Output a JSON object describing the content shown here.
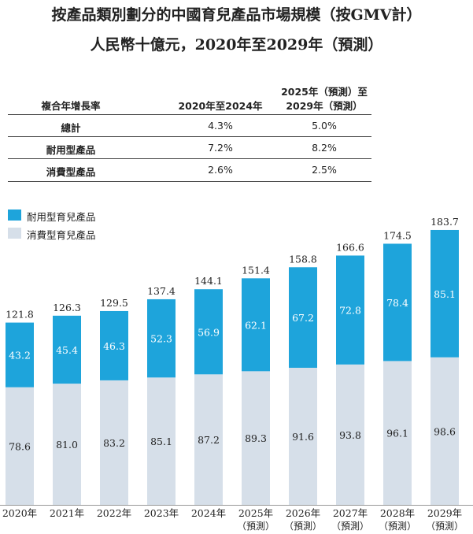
{
  "title_line1": "按產品類別劃分的中國育兒產品市場規模（按GMV計）",
  "title_line2": "人民幣十億元，2020年至2029年（預測）",
  "cagr_table": {
    "col_label": "複合年增長率",
    "col_hist": "2020年至2024年",
    "col_fore_line1": "2025年（預測）至",
    "col_fore_line2": "2029年（預測）",
    "rows": [
      {
        "label": "總計",
        "hist": "4.3%",
        "fore": "5.0%"
      },
      {
        "label": "耐用型產品",
        "hist": "7.2%",
        "fore": "8.2%"
      },
      {
        "label": "消費型產品",
        "hist": "2.6%",
        "fore": "2.5%"
      }
    ]
  },
  "colors": {
    "durable": "#1ea4db",
    "consumable": "#d6dfe9",
    "text": "#222222"
  },
  "chart_data": {
    "type": "bar",
    "stacked": true,
    "categories": [
      "2020年",
      "2021年",
      "2022年",
      "2023年",
      "2024年",
      "2025年",
      "2026年",
      "2027年",
      "2028年",
      "2029年"
    ],
    "category_sublabels": [
      "",
      "",
      "",
      "",
      "",
      "（預測）",
      "（預測）",
      "（預測）",
      "（預測）",
      "（預測）"
    ],
    "series": [
      {
        "name": "消費型育兒產品",
        "values": [
          78.6,
          81.0,
          83.2,
          85.1,
          87.2,
          89.3,
          91.6,
          93.8,
          96.1,
          98.6
        ]
      },
      {
        "name": "耐用型育兒產品",
        "values": [
          43.2,
          45.4,
          46.3,
          52.3,
          56.9,
          62.1,
          67.2,
          72.8,
          78.4,
          85.1
        ]
      }
    ],
    "totals": [
      121.8,
      126.3,
      129.5,
      137.4,
      144.1,
      151.4,
      158.8,
      166.6,
      174.5,
      183.7
    ],
    "legend": [
      "耐用型育兒產品",
      "消費型育兒產品"
    ],
    "legend_position": "top-left",
    "ylim": [
      0,
      183.7
    ]
  }
}
